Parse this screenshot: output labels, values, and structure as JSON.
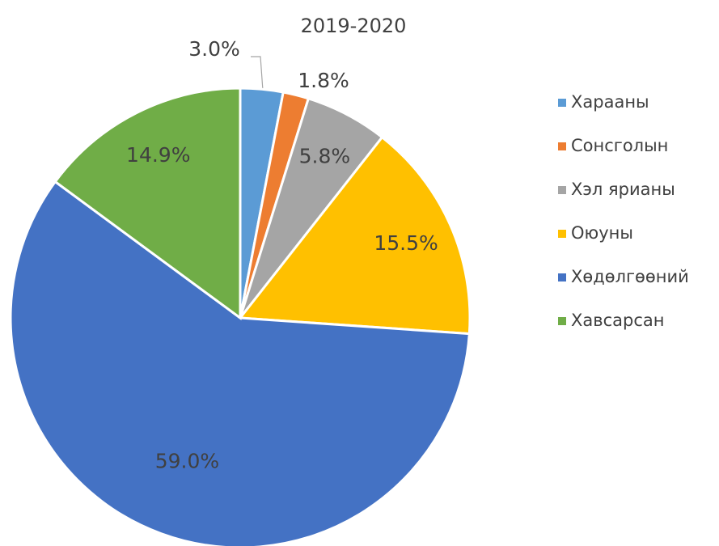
{
  "chart_data": {
    "type": "pie",
    "title": "2019-2020",
    "categories": [
      "Харааны",
      "Сонсголын",
      "Хэл ярианы",
      "Оюуны",
      "Хөдөлгөөний",
      "Хавсарсан"
    ],
    "values": [
      3.0,
      1.8,
      5.8,
      15.5,
      59.0,
      14.9
    ],
    "value_labels": [
      "3.0%",
      "1.8%",
      "5.8%",
      "15.5%",
      "59.0%",
      "14.9%"
    ],
    "colors": [
      "#5b9bd5",
      "#ed7d31",
      "#a5a5a5",
      "#ffc000",
      "#4472c4",
      "#70ad47"
    ],
    "legend": "right"
  }
}
